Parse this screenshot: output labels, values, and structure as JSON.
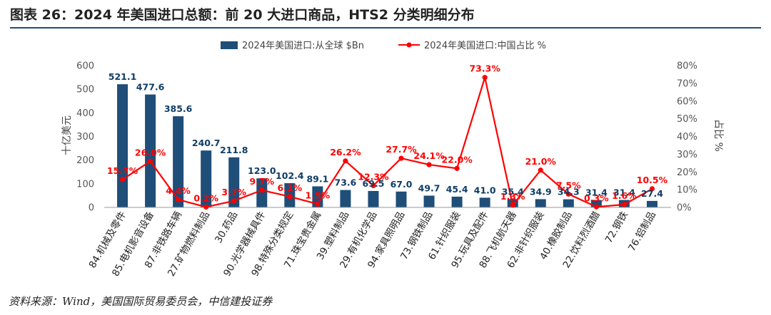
{
  "header": {
    "title": "图表 26：2024 年美国进口总额：前 20 大进口商品，HTS2 分类明细分布"
  },
  "footer": {
    "source": "资料来源：Wind，美国国际贸易委员会，中信建投证券"
  },
  "chart_data": {
    "type": "bar",
    "ylabel": "十亿美元",
    "y2label": "占比 %",
    "ylim": [
      0,
      600
    ],
    "y2lim": [
      0,
      80
    ],
    "yticks": [
      "0",
      "100",
      "200",
      "300",
      "400",
      "500",
      "600"
    ],
    "y2ticks": [
      "0%",
      "10%",
      "20%",
      "30%",
      "40%",
      "50%",
      "60%",
      "70%",
      "80%"
    ],
    "grid": false,
    "legend_position": "top",
    "categories": [
      "84.机械及零件",
      "85.电机影音设备",
      "87.非铁路车辆",
      "27.矿物燃料制品",
      "30.药品",
      "90.光学器械具件",
      "98.特殊分类规定",
      "71.珠宝贵金属",
      "39.塑料制品",
      "29.有机化学品",
      "94.家具照明品",
      "73.钢铁制品",
      "61.针织服装",
      "95.玩具及配件",
      "88.飞机航天器",
      "62.非针织服装",
      "40.橡胶制品",
      "22.饮料烈酒醋",
      "72.钢铁",
      "76.铝制品"
    ],
    "series": [
      {
        "name": "2024年美国进口:从全球 $Bn",
        "type": "bar",
        "color": "#1f4e79",
        "values": [
          521.1,
          477.6,
          385.6,
          240.7,
          211.8,
          123.0,
          102.4,
          89.1,
          73.6,
          69.5,
          67.0,
          49.7,
          45.4,
          41.0,
          35.4,
          34.9,
          34.3,
          31.4,
          31.4,
          27.4
        ],
        "labels": [
          "521.1",
          "477.6",
          "385.6",
          "240.7",
          "211.8",
          "123.0",
          "102.4",
          "89.1",
          "73.6",
          "69.5",
          "67.0",
          "49.7",
          "45.4",
          "41.0",
          "35.4",
          "34.9",
          "34.3",
          "31.4",
          "31.4",
          "27.4"
        ]
      },
      {
        "name": "2024年美国进口:中国占比 %",
        "type": "line",
        "axis": "right",
        "color": "#ff0000",
        "values": [
          15.7,
          26.0,
          4.4,
          0.2,
          3.7,
          9.7,
          6.1,
          1.9,
          26.2,
          12.3,
          27.7,
          24.1,
          22.0,
          73.3,
          1.3,
          21.0,
          7.5,
          0.3,
          1.6,
          10.5
        ],
        "labels": [
          "15.7%",
          "26.0%",
          "4.4%",
          "0.2%",
          "3.7%",
          "9.7%",
          "6.1%",
          "1.9%",
          "26.2%",
          "12.3%",
          "27.7%",
          "24.1%",
          "22.0%",
          "73.3%",
          "1.3%",
          "21.0%",
          "7.5%",
          "0.3%",
          "1.6%",
          "10.5%"
        ]
      }
    ]
  }
}
